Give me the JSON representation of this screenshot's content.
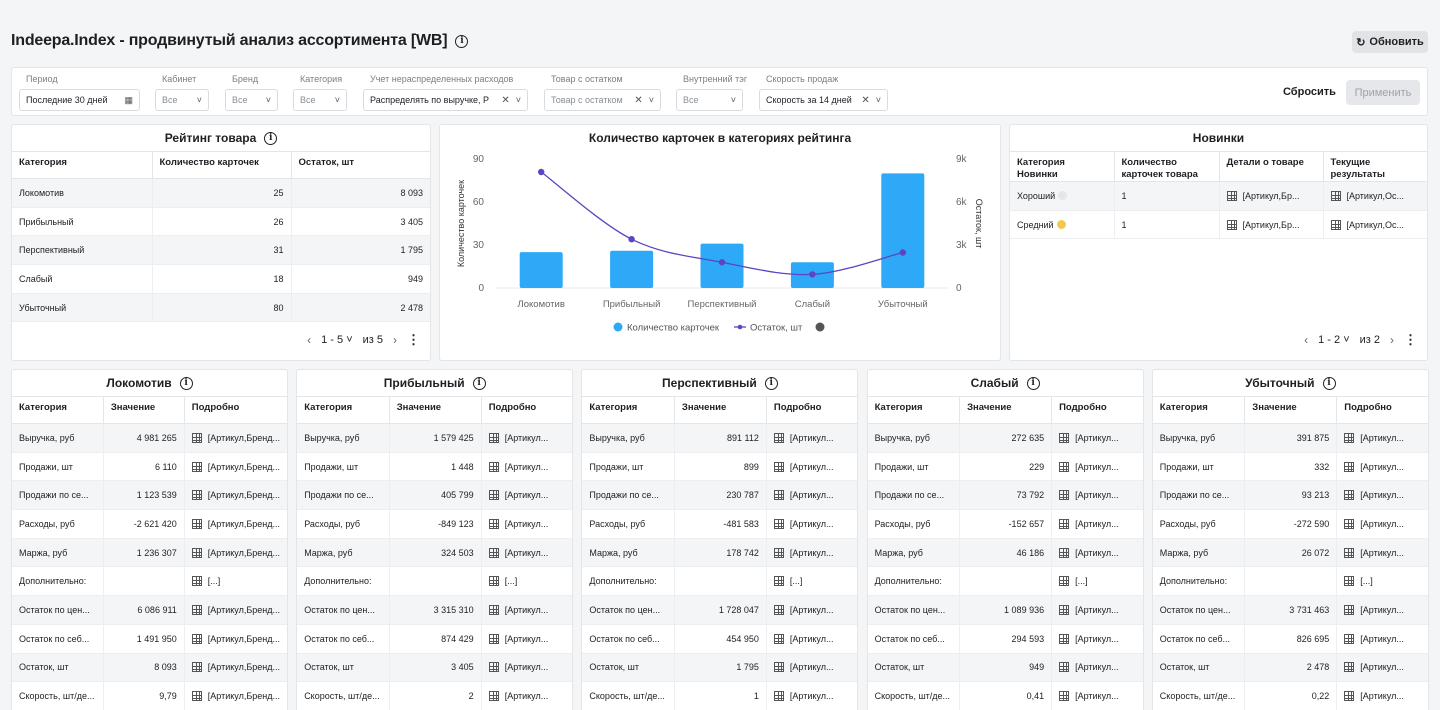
{
  "header": {
    "title": "Indeepa.Index - продвинутый анализ ассортимента [WB]",
    "refresh_label": "Обновить"
  },
  "filters": [
    {
      "label": "Период",
      "value": "Последние 30 дней",
      "placeholder": false,
      "icon": "calendar-icon"
    },
    {
      "label": "Кабинет",
      "value": "Все",
      "placeholder": true
    },
    {
      "label": "Бренд",
      "value": "Все",
      "placeholder": true
    },
    {
      "label": "Категория",
      "value": "Все",
      "placeholder": true
    },
    {
      "label": "Учет нераспределенных расходов",
      "value": "Распределять по выручке, Р",
      "placeholder": false,
      "clearable": true
    },
    {
      "label": "Товар с остатком",
      "value": "Товар с остатком",
      "placeholder": true,
      "clearable": true
    },
    {
      "label": "Внутренний тэг",
      "value": "Все",
      "placeholder": true
    },
    {
      "label": "Скорость продаж",
      "value": "Скорость за 14 дней",
      "placeholder": false,
      "clearable": true
    }
  ],
  "actions": {
    "reset": "Сбросить",
    "apply": "Применить"
  },
  "rating": {
    "title": "Рейтинг товара",
    "columns": [
      "Категория",
      "Количество карточек",
      "Остаток, шт"
    ],
    "rows": [
      [
        "Локомотив",
        "25",
        "8 093"
      ],
      [
        "Прибыльный",
        "26",
        "3 405"
      ],
      [
        "Перспективный",
        "31",
        "1 795"
      ],
      [
        "Слабый",
        "18",
        "949"
      ],
      [
        "Убыточный",
        "80",
        "2 478"
      ]
    ],
    "pager": {
      "range": "1 - 5",
      "of": "из 5"
    }
  },
  "chart_data": {
    "type": "bar",
    "title": "Количество карточек в категориях рейтинга",
    "categories": [
      "Локомотив",
      "Прибыльный",
      "Перспективный",
      "Слабый",
      "Убыточный"
    ],
    "series": [
      {
        "name": "Количество карточек",
        "type": "bar",
        "axis": "left",
        "values": [
          25,
          26,
          31,
          18,
          80
        ],
        "color": "#2ea9f7"
      },
      {
        "name": "Остаток, шт",
        "type": "line",
        "axis": "right",
        "values": [
          8093,
          3405,
          1795,
          949,
          2478
        ],
        "color": "#5b45c2"
      }
    ],
    "legend_extra_color": "#555555",
    "ylabel": "Количество карточек",
    "y2label": "Остаток, шт",
    "ylim": [
      0,
      90
    ],
    "y2lim": [
      0,
      9000
    ],
    "yticks": [
      "0",
      "30",
      "60",
      "90"
    ],
    "y2ticks": [
      "0",
      "3k",
      "6k",
      "9k"
    ],
    "legend": "bottom"
  },
  "novelties": {
    "title": "Новинки",
    "columns": [
      "Категория Новинки",
      "Количество карточек товара",
      "Детали о товаре",
      "Текущие результаты"
    ],
    "rows": [
      {
        "cat": "Хороший",
        "dot": "#e6e6e6",
        "count": "1",
        "details": "[Артикул,Бр...",
        "results": "[Артикул,Ос..."
      },
      {
        "cat": "Средний",
        "dot": "#f2c94c",
        "count": "1",
        "details": "[Артикул,Бр...",
        "results": "[Артикул,Ос..."
      }
    ],
    "pager": {
      "range": "1 - 2",
      "of": "из 2"
    }
  },
  "detail_columns": [
    "Категория",
    "Значение",
    "Подробно"
  ],
  "details": [
    {
      "title": "Локомотив",
      "rows": [
        [
          "Выручка, руб",
          "4 981 265",
          "[Артикул,Бренд..."
        ],
        [
          "Продажи, шт",
          "6 110",
          "[Артикул,Бренд..."
        ],
        [
          "Продажи по се...",
          "1 123 539",
          "[Артикул,Бренд..."
        ],
        [
          "Расходы, руб",
          "-2 621 420",
          "[Артикул,Бренд..."
        ],
        [
          "Маржа, руб",
          "1 236 307",
          "[Артикул,Бренд..."
        ],
        [
          "Дополнительно:",
          "",
          "[...]"
        ],
        [
          "Остаток по цен...",
          "6 086 911",
          "[Артикул,Бренд..."
        ],
        [
          "Остаток по себ...",
          "1 491 950",
          "[Артикул,Бренд..."
        ],
        [
          "Остаток, шт",
          "8 093",
          "[Артикул,Бренд..."
        ],
        [
          "Скорость, шт/де...",
          "9,79",
          "[Артикул,Бренд..."
        ]
      ]
    },
    {
      "title": "Прибыльный",
      "rows": [
        [
          "Выручка, руб",
          "1 579 425",
          "[Артикул..."
        ],
        [
          "Продажи, шт",
          "1 448",
          "[Артикул..."
        ],
        [
          "Продажи по се...",
          "405 799",
          "[Артикул..."
        ],
        [
          "Расходы, руб",
          "-849 123",
          "[Артикул..."
        ],
        [
          "Маржа, руб",
          "324 503",
          "[Артикул..."
        ],
        [
          "Дополнительно:",
          "",
          "[...]"
        ],
        [
          "Остаток по цен...",
          "3 315 310",
          "[Артикул..."
        ],
        [
          "Остаток по себ...",
          "874 429",
          "[Артикул..."
        ],
        [
          "Остаток, шт",
          "3 405",
          "[Артикул..."
        ],
        [
          "Скорость, шт/де...",
          "2",
          "[Артикул..."
        ]
      ]
    },
    {
      "title": "Перспективный",
      "rows": [
        [
          "Выручка, руб",
          "891 112",
          "[Артикул..."
        ],
        [
          "Продажи, шт",
          "899",
          "[Артикул..."
        ],
        [
          "Продажи по се...",
          "230 787",
          "[Артикул..."
        ],
        [
          "Расходы, руб",
          "-481 583",
          "[Артикул..."
        ],
        [
          "Маржа, руб",
          "178 742",
          "[Артикул..."
        ],
        [
          "Дополнительно:",
          "",
          "[...]"
        ],
        [
          "Остаток по цен...",
          "1 728 047",
          "[Артикул..."
        ],
        [
          "Остаток по себ...",
          "454 950",
          "[Артикул..."
        ],
        [
          "Остаток, шт",
          "1 795",
          "[Артикул..."
        ],
        [
          "Скорость, шт/де...",
          "1",
          "[Артикул..."
        ]
      ]
    },
    {
      "title": "Слабый",
      "rows": [
        [
          "Выручка, руб",
          "272 635",
          "[Артикул..."
        ],
        [
          "Продажи, шт",
          "229",
          "[Артикул..."
        ],
        [
          "Продажи по се...",
          "73 792",
          "[Артикул..."
        ],
        [
          "Расходы, руб",
          "-152 657",
          "[Артикул..."
        ],
        [
          "Маржа, руб",
          "46 186",
          "[Артикул..."
        ],
        [
          "Дополнительно:",
          "",
          "[...]"
        ],
        [
          "Остаток по цен...",
          "1 089 936",
          "[Артикул..."
        ],
        [
          "Остаток по себ...",
          "294 593",
          "[Артикул..."
        ],
        [
          "Остаток, шт",
          "949",
          "[Артикул..."
        ],
        [
          "Скорость, шт/де...",
          "0,41",
          "[Артикул..."
        ]
      ]
    },
    {
      "title": "Убыточный",
      "rows": [
        [
          "Выручка, руб",
          "391 875",
          "[Артикул..."
        ],
        [
          "Продажи, шт",
          "332",
          "[Артикул..."
        ],
        [
          "Продажи по се...",
          "93 213",
          "[Артикул..."
        ],
        [
          "Расходы, руб",
          "-272 590",
          "[Артикул..."
        ],
        [
          "Маржа, руб",
          "26 072",
          "[Артикул..."
        ],
        [
          "Дополнительно:",
          "",
          "[...]"
        ],
        [
          "Остаток по цен...",
          "3 731 463",
          "[Артикул..."
        ],
        [
          "Остаток по себ...",
          "826 695",
          "[Артикул..."
        ],
        [
          "Остаток, шт",
          "2 478",
          "[Артикул..."
        ],
        [
          "Скорость, шт/де...",
          "0,22",
          "[Артикул..."
        ]
      ]
    }
  ]
}
